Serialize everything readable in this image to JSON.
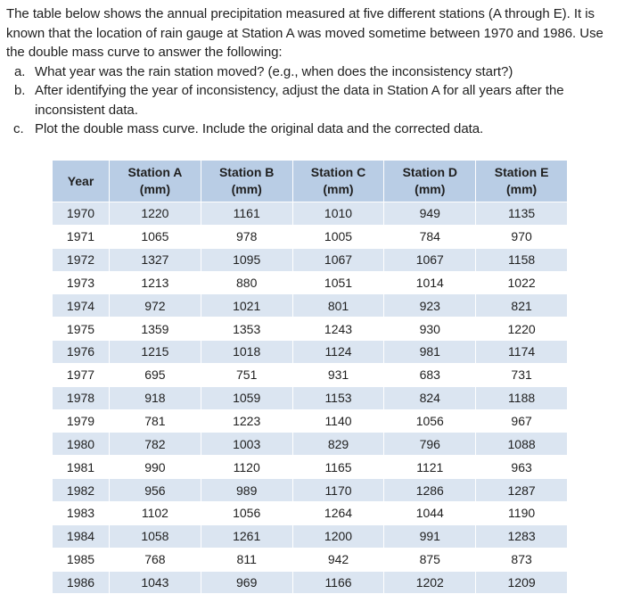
{
  "intro": "The table below shows the annual precipitation measured at five different stations (A through E). It is known that the location of rain gauge at Station A was moved sometime between 1970 and 1986. Use the double mass curve to answer the following:",
  "questions": [
    {
      "marker": "a.",
      "text": "What year was the rain station moved? (e.g., when does the inconsistency start?)"
    },
    {
      "marker": "b.",
      "text": "After identifying the year of inconsistency, adjust the data in Station A for all years after the inconsistent data."
    },
    {
      "marker": "c.",
      "text": "Plot the double mass curve. Include the original data and the corrected data."
    }
  ],
  "table": {
    "headers": [
      {
        "line1": "Year",
        "line2": ""
      },
      {
        "line1": "Station A",
        "line2": "(mm)"
      },
      {
        "line1": "Station B",
        "line2": "(mm)"
      },
      {
        "line1": "Station C",
        "line2": "(mm)"
      },
      {
        "line1": "Station D",
        "line2": "(mm)"
      },
      {
        "line1": "Station E",
        "line2": "(mm)"
      }
    ],
    "rows": [
      [
        "1970",
        "1220",
        "1161",
        "1010",
        "949",
        "1135"
      ],
      [
        "1971",
        "1065",
        "978",
        "1005",
        "784",
        "970"
      ],
      [
        "1972",
        "1327",
        "1095",
        "1067",
        "1067",
        "1158"
      ],
      [
        "1973",
        "1213",
        "880",
        "1051",
        "1014",
        "1022"
      ],
      [
        "1974",
        "972",
        "1021",
        "801",
        "923",
        "821"
      ],
      [
        "1975",
        "1359",
        "1353",
        "1243",
        "930",
        "1220"
      ],
      [
        "1976",
        "1215",
        "1018",
        "1124",
        "981",
        "1174"
      ],
      [
        "1977",
        "695",
        "751",
        "931",
        "683",
        "731"
      ],
      [
        "1978",
        "918",
        "1059",
        "1153",
        "824",
        "1188"
      ],
      [
        "1979",
        "781",
        "1223",
        "1140",
        "1056",
        "967"
      ],
      [
        "1980",
        "782",
        "1003",
        "829",
        "796",
        "1088"
      ],
      [
        "1981",
        "990",
        "1120",
        "1165",
        "1121",
        "963"
      ],
      [
        "1982",
        "956",
        "989",
        "1170",
        "1286",
        "1287"
      ],
      [
        "1983",
        "1102",
        "1056",
        "1264",
        "1044",
        "1190"
      ],
      [
        "1984",
        "1058",
        "1261",
        "1200",
        "991",
        "1283"
      ],
      [
        "1985",
        "768",
        "811",
        "942",
        "875",
        "873"
      ],
      [
        "1986",
        "1043",
        "969",
        "1166",
        "1202",
        "1209"
      ]
    ]
  }
}
